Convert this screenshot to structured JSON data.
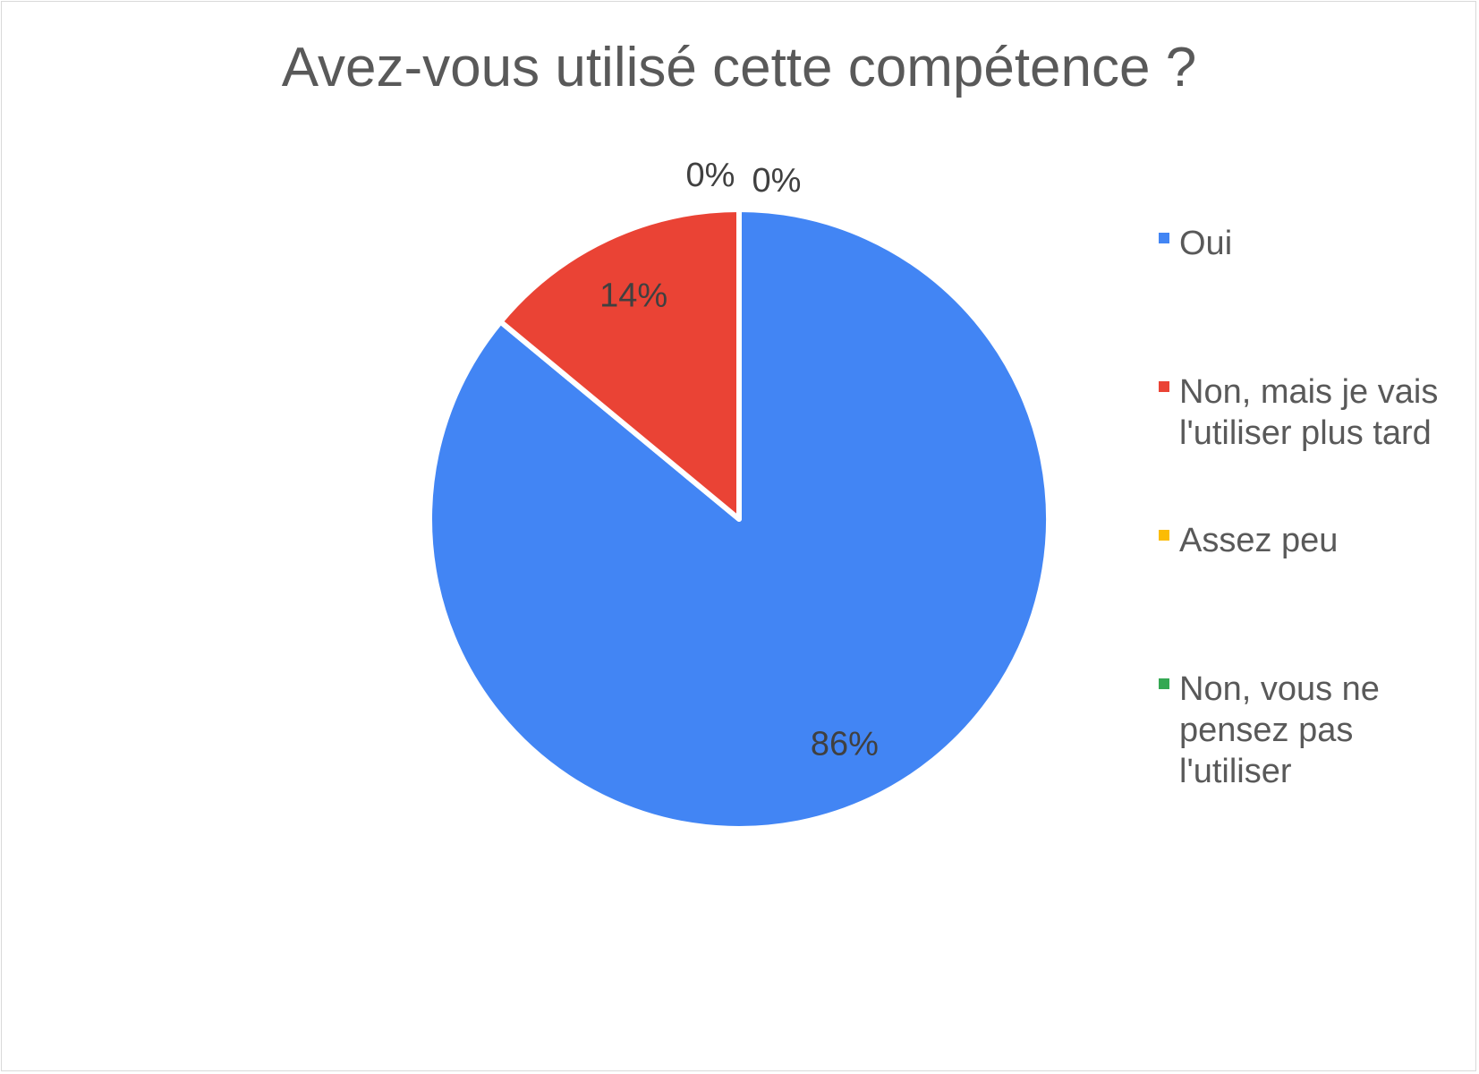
{
  "chart_data": {
    "type": "pie",
    "title": "Avez-vous utilisé cette compétence ?",
    "categories": [
      "Oui",
      "Non, mais je vais l'utiliser plus tard",
      "Assez peu",
      "Non, vous ne pensez pas l'utiliser"
    ],
    "values": [
      86,
      14,
      0,
      0
    ],
    "data_labels": [
      "86%",
      "14%",
      "0%",
      "0%"
    ],
    "colors": [
      "#4285f4",
      "#ea4335",
      "#fbbc04",
      "#34a853"
    ],
    "legend": {
      "position": "right",
      "entries": [
        {
          "lines": [
            "Oui"
          ],
          "color": "#4285f4"
        },
        {
          "lines": [
            "Non, mais je vais",
            "l'utiliser plus tard"
          ],
          "color": "#ea4335"
        },
        {
          "lines": [
            "Assez peu"
          ],
          "color": "#fbbc04"
        },
        {
          "lines": [
            "Non, vous ne",
            "pensez pas",
            "l'utiliser"
          ],
          "color": "#34a853"
        }
      ]
    }
  }
}
